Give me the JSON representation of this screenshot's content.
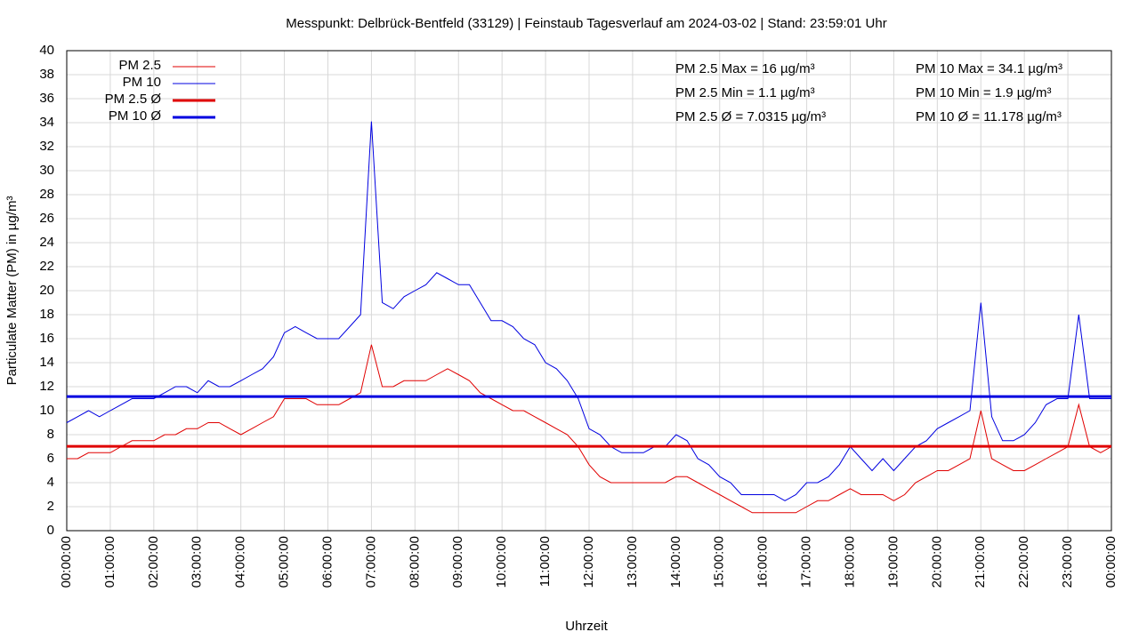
{
  "chart_data": {
    "type": "line",
    "title": "Messpunkt: Delbrück-Bentfeld (33129) | Feinstaub Tagesverlauf am 2024-03-02 | Stand: 23:59:01 Uhr",
    "x_label": "Uhrzeit",
    "y_label": "Particulate Matter (PM) in µg/m³",
    "x": [
      0,
      0.25,
      0.5,
      0.75,
      1,
      1.25,
      1.5,
      1.75,
      2,
      2.25,
      2.5,
      2.75,
      3,
      3.25,
      3.5,
      3.75,
      4,
      4.25,
      4.5,
      4.75,
      5,
      5.25,
      5.5,
      5.75,
      6,
      6.25,
      6.5,
      6.75,
      7,
      7.25,
      7.5,
      7.75,
      8,
      8.25,
      8.5,
      8.75,
      9,
      9.25,
      9.5,
      9.75,
      10,
      10.25,
      10.5,
      10.75,
      11,
      11.25,
      11.5,
      11.75,
      12,
      12.25,
      12.5,
      12.75,
      13,
      13.25,
      13.5,
      13.75,
      14,
      14.25,
      14.5,
      14.75,
      15,
      15.25,
      15.5,
      15.75,
      16,
      16.25,
      16.5,
      16.75,
      17,
      17.25,
      17.5,
      17.75,
      18,
      18.25,
      18.5,
      18.75,
      19,
      19.25,
      19.5,
      19.75,
      20,
      20.25,
      20.5,
      20.75,
      21,
      21.25,
      21.5,
      21.75,
      22,
      22.25,
      22.5,
      22.75,
      23,
      23.25,
      23.5,
      23.75,
      24
    ],
    "series": [
      {
        "name": "PM 2.5",
        "color": "#e00000",
        "values": [
          6,
          6,
          6.5,
          6.5,
          6.5,
          7,
          7.5,
          7.5,
          7.5,
          8,
          8,
          8.5,
          8.5,
          9,
          9,
          8.5,
          8,
          8.5,
          9,
          9.5,
          11,
          11,
          11,
          10.5,
          10.5,
          10.5,
          11,
          11.5,
          15.5,
          12,
          12,
          12.5,
          12.5,
          12.5,
          13,
          13.5,
          13,
          12.5,
          11.5,
          11,
          10.5,
          10,
          10,
          9.5,
          9,
          8.5,
          8,
          7,
          5.5,
          4.5,
          4,
          4,
          4,
          4,
          4,
          4,
          4.5,
          4.5,
          4,
          3.5,
          3,
          2.5,
          2,
          1.5,
          1.5,
          1.5,
          1.5,
          1.5,
          2,
          2.5,
          2.5,
          3,
          3.5,
          3,
          3,
          3,
          2.5,
          3,
          4,
          4.5,
          5,
          5,
          5.5,
          6,
          10,
          6,
          5.5,
          5,
          5,
          5.5,
          6,
          6.5,
          7,
          10.5,
          7,
          6.5,
          7
        ]
      },
      {
        "name": "PM 10",
        "color": "#0000e0",
        "values": [
          9,
          9.5,
          10,
          9.5,
          10,
          10.5,
          11,
          11,
          11,
          11.5,
          12,
          12,
          11.5,
          12.5,
          12,
          12,
          12.5,
          13,
          13.5,
          14.5,
          16.5,
          17,
          16.5,
          16,
          16,
          16,
          17,
          18,
          34.1,
          19,
          18.5,
          19.5,
          20,
          20.5,
          21.5,
          21,
          20.5,
          20.5,
          19,
          17.5,
          17.5,
          17,
          16,
          15.5,
          14,
          13.5,
          12.5,
          11,
          8.5,
          8,
          7,
          6.5,
          6.5,
          6.5,
          7,
          7,
          8,
          7.5,
          6,
          5.5,
          4.5,
          4,
          3,
          3,
          3,
          3,
          2.5,
          3,
          4,
          4,
          4.5,
          5.5,
          7,
          6,
          5,
          6,
          5,
          6,
          7,
          7.5,
          8.5,
          9,
          9.5,
          10,
          19,
          9.5,
          7.5,
          7.5,
          8,
          9,
          10.5,
          11,
          11,
          18,
          11,
          11,
          11
        ]
      }
    ],
    "reference_lines": [
      {
        "name": "PM 2.5 Ø",
        "color": "#e00000",
        "value": 7.0315
      },
      {
        "name": "PM 10 Ø",
        "color": "#0000e0",
        "value": 11.178
      }
    ],
    "annotations": [
      {
        "text": "PM 2.5 Max = 16 µg/m³",
        "color": "#ff0000"
      },
      {
        "text": "PM 2.5 Min = 1.1 µg/m³",
        "color": "#ff0000"
      },
      {
        "text": "PM 2.5 Ø = 7.0315 µg/m³",
        "color": "#ff0000"
      },
      {
        "text": "PM 10 Max = 34.1 µg/m³",
        "color": "#0000ff"
      },
      {
        "text": "PM 10 Min = 1.9 µg/m³",
        "color": "#0000ff"
      },
      {
        "text": "PM 10 Ø = 11.178 µg/m³",
        "color": "#0000ff"
      }
    ],
    "xlim": [
      0,
      24
    ],
    "xticks": [
      {
        "value": 0,
        "label": "00:00:00"
      },
      {
        "value": 1,
        "label": "01:00:00"
      },
      {
        "value": 2,
        "label": "02:00:00"
      },
      {
        "value": 3,
        "label": "03:00:00"
      },
      {
        "value": 4,
        "label": "04:00:00"
      },
      {
        "value": 5,
        "label": "05:00:00"
      },
      {
        "value": 6,
        "label": "06:00:00"
      },
      {
        "value": 7,
        "label": "07:00:00"
      },
      {
        "value": 8,
        "label": "08:00:00"
      },
      {
        "value": 9,
        "label": "09:00:00"
      },
      {
        "value": 10,
        "label": "10:00:00"
      },
      {
        "value": 11,
        "label": "11:00:00"
      },
      {
        "value": 12,
        "label": "12:00:00"
      },
      {
        "value": 13,
        "label": "13:00:00"
      },
      {
        "value": 14,
        "label": "14:00:00"
      },
      {
        "value": 15,
        "label": "15:00:00"
      },
      {
        "value": 16,
        "label": "16:00:00"
      },
      {
        "value": 17,
        "label": "17:00:00"
      },
      {
        "value": 18,
        "label": "18:00:00"
      },
      {
        "value": 19,
        "label": "19:00:00"
      },
      {
        "value": 20,
        "label": "20:00:00"
      },
      {
        "value": 21,
        "label": "21:00:00"
      },
      {
        "value": 22,
        "label": "22:00:00"
      },
      {
        "value": 23,
        "label": "23:00:00"
      },
      {
        "value": 24,
        "label": "00:00:00"
      }
    ],
    "ylim": [
      0,
      40
    ],
    "yticks": [
      0,
      2,
      4,
      6,
      8,
      10,
      12,
      14,
      16,
      18,
      20,
      22,
      24,
      26,
      28,
      30,
      32,
      34,
      36,
      38,
      40
    ],
    "grid": true
  }
}
